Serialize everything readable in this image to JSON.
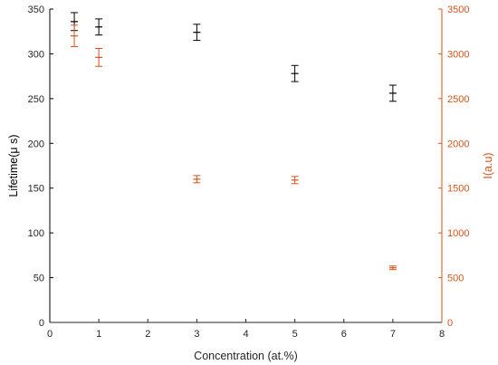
{
  "chart_data": {
    "type": "scatter",
    "xlabel": "Concentration (at.%)",
    "ylabel_left": "Lifetime(μ s)",
    "ylabel_right": "I(a.u)",
    "xlim": [
      0,
      8
    ],
    "ylim_left": [
      0,
      350
    ],
    "ylim_right": [
      0,
      3500
    ],
    "x_ticks": [
      0,
      1,
      2,
      3,
      4,
      5,
      6,
      7,
      8
    ],
    "y_left_ticks": [
      0,
      50,
      100,
      150,
      200,
      250,
      300,
      350
    ],
    "y_right_ticks": [
      0,
      500,
      1000,
      1500,
      2000,
      2500,
      3000,
      3500
    ],
    "grid": false,
    "colors": {
      "left_series": "#000000",
      "right_series": "#d95319",
      "axis_left": "#000000",
      "axis_right": "#d95319"
    },
    "series": [
      {
        "axis": "left",
        "points": [
          {
            "x": 0.5,
            "y": 336,
            "err": 10
          },
          {
            "x": 1,
            "y": 330,
            "err": 9
          },
          {
            "x": 3,
            "y": 324,
            "err": 9
          },
          {
            "x": 5,
            "y": 278,
            "err": 9
          },
          {
            "x": 7,
            "y": 256,
            "err": 9
          }
        ]
      },
      {
        "axis": "right",
        "points": [
          {
            "x": 0.5,
            "y": 3200,
            "err": 120
          },
          {
            "x": 1,
            "y": 2960,
            "err": 100
          },
          {
            "x": 3,
            "y": 1600,
            "err": 40
          },
          {
            "x": 5,
            "y": 1590,
            "err": 40
          },
          {
            "x": 7,
            "y": 610,
            "err": 20
          }
        ]
      }
    ]
  }
}
